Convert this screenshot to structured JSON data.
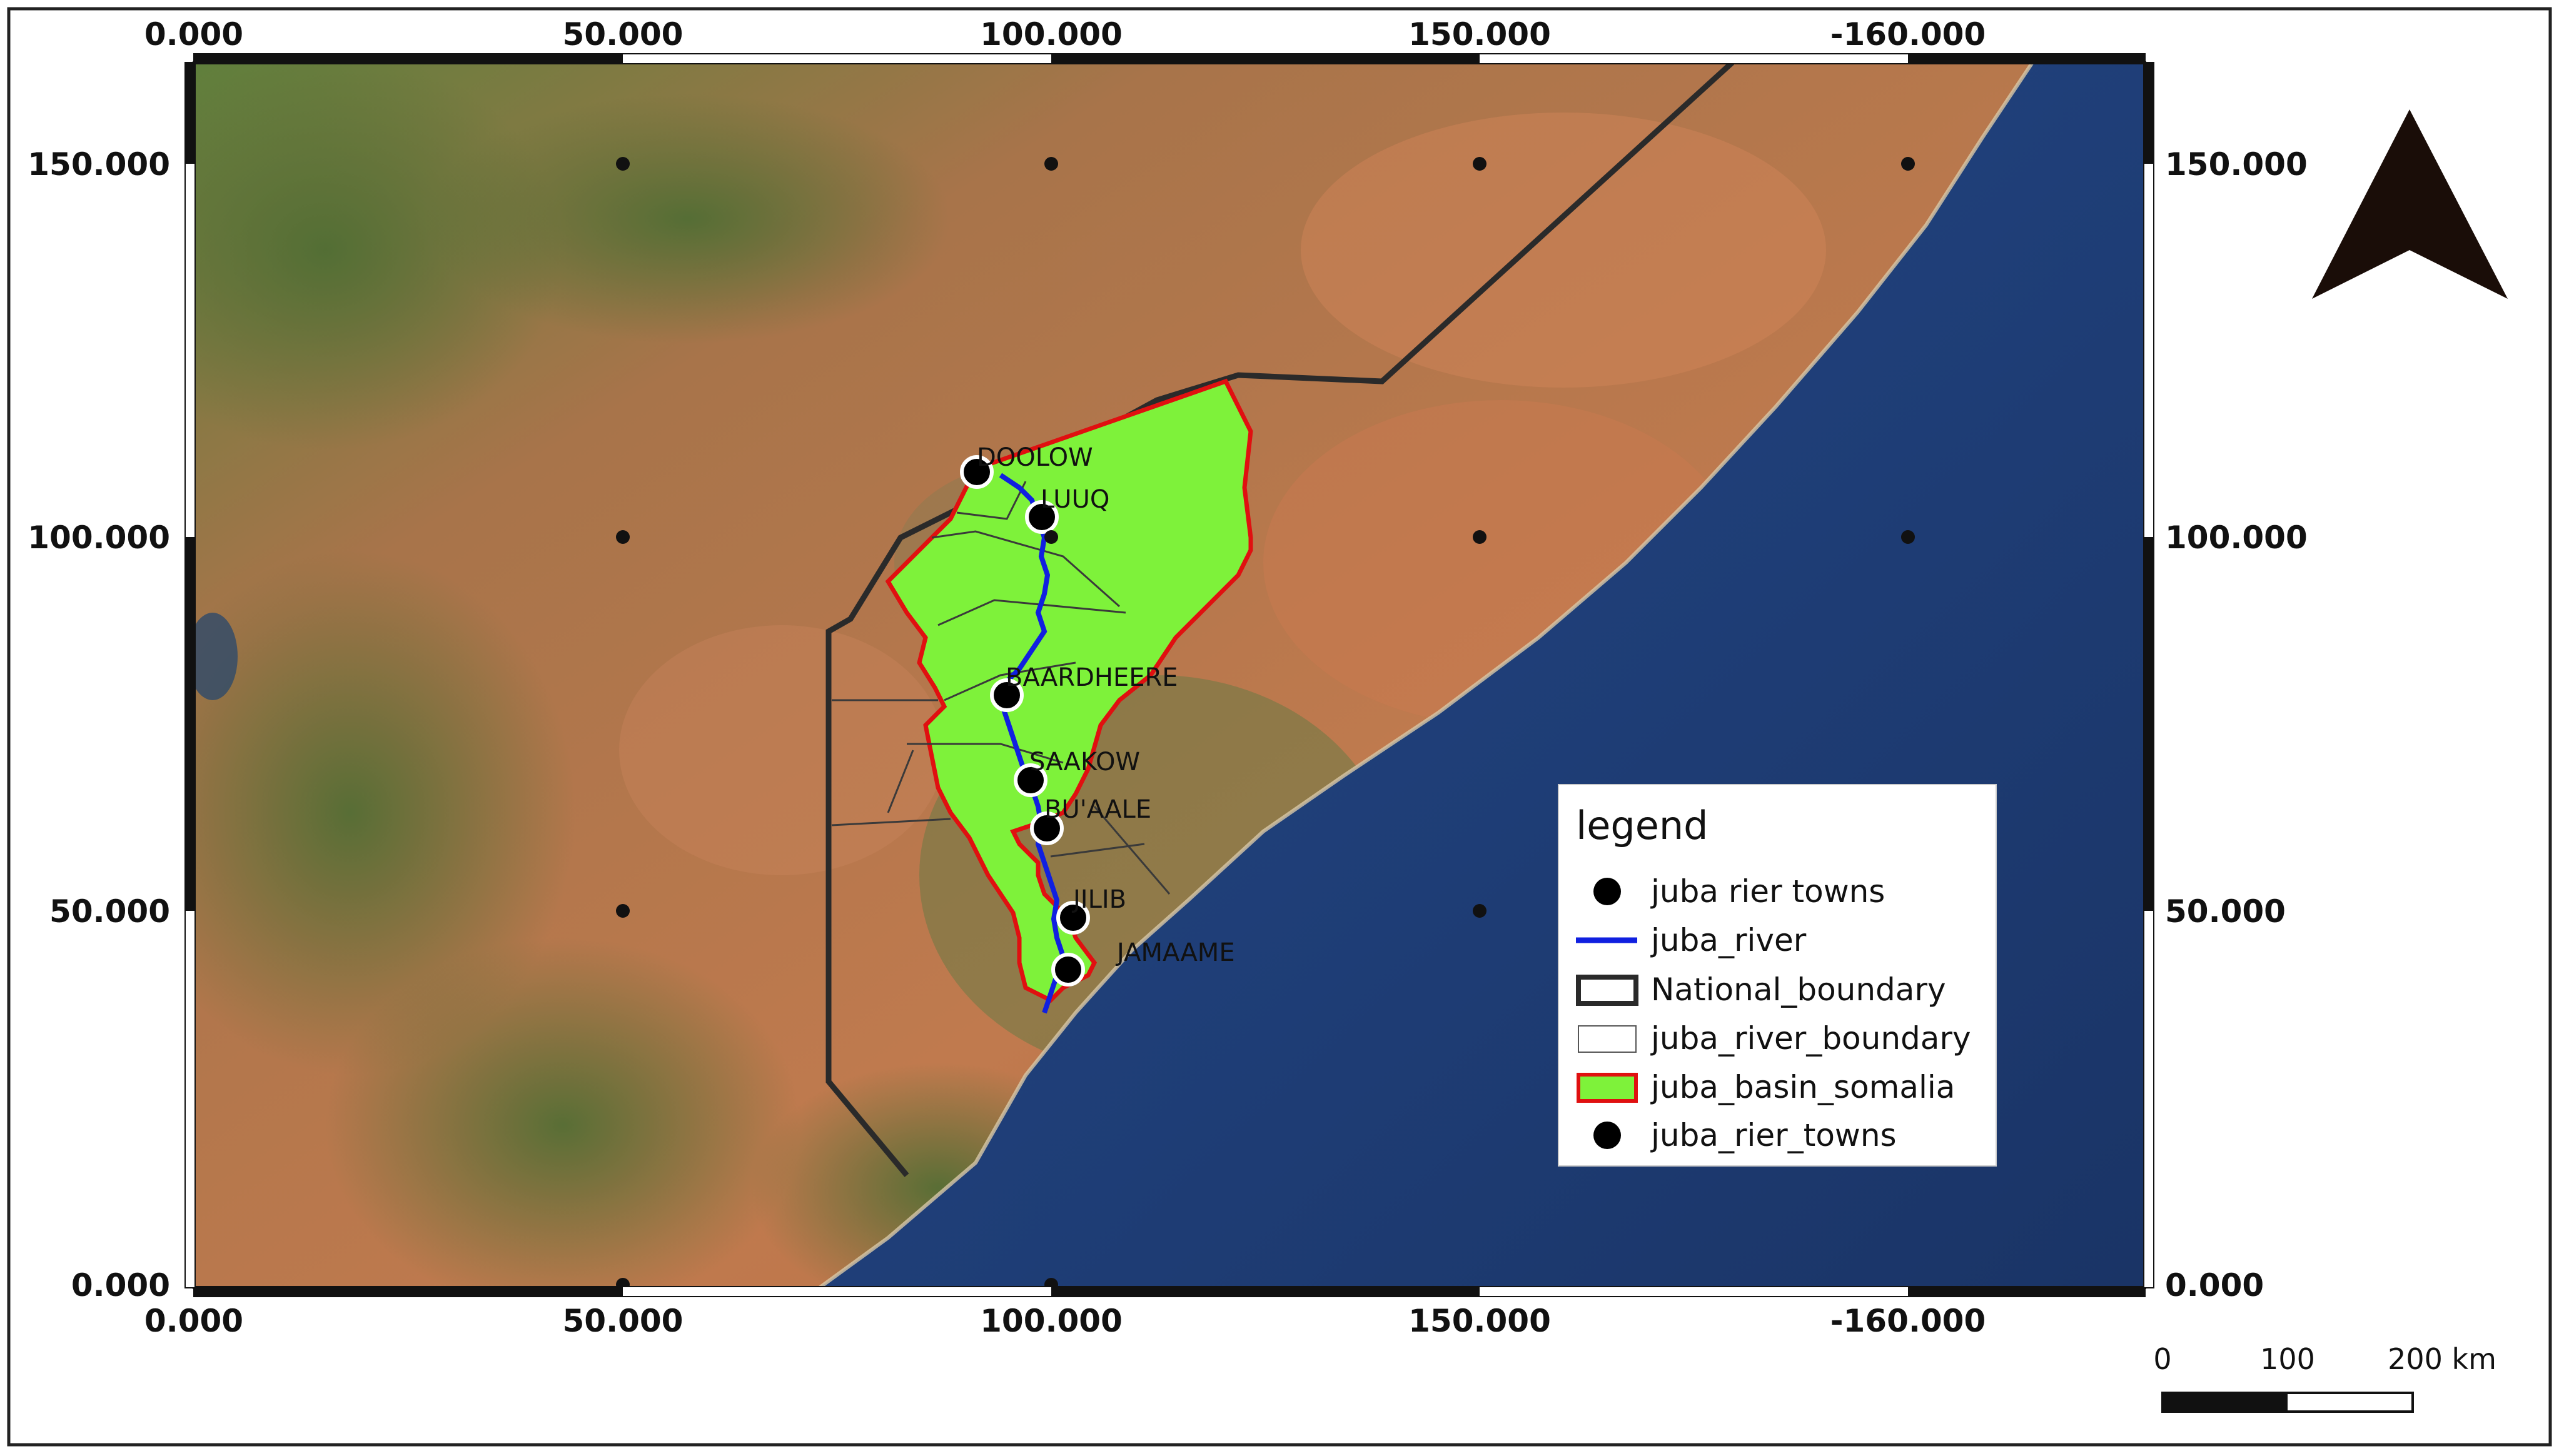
{
  "map": {
    "x_ticks_top": [
      "0.000",
      "50.000",
      "100.000",
      "150.000",
      "-160.000"
    ],
    "x_ticks_bottom": [
      "0.000",
      "50.000",
      "100.000",
      "150.000",
      "-160.000"
    ],
    "y_ticks_left": [
      "150.000",
      "100.000",
      "50.000",
      "0.000"
    ],
    "y_ticks_right": [
      "150.000",
      "100.000",
      "50.000",
      "0.000"
    ],
    "towns": [
      "DOOLOW",
      "LUUQ",
      "BAARDHEERE",
      "SAAKOW",
      "BU'AALE",
      "JILIB",
      "JAMAAME"
    ],
    "colors": {
      "basin_fill": "#7ef23a",
      "basin_outline": "#e01010",
      "river": "#1020e0",
      "national_boundary": "#2a2a2a",
      "sea": "#1f3f7a",
      "land": "#b8704a"
    }
  },
  "legend": {
    "title": "legend",
    "items": [
      {
        "label": "juba rier towns",
        "symbol": "dot"
      },
      {
        "label": "juba_river",
        "symbol": "line"
      },
      {
        "label": "National_boundary",
        "symbol": "thick-box"
      },
      {
        "label": "juba_river_boundary",
        "symbol": "thin-box"
      },
      {
        "label": "juba_basin_somalia",
        "symbol": "filled-box"
      },
      {
        "label": "juba_rier_towns",
        "symbol": "dot"
      }
    ]
  },
  "scale_bar": {
    "labels": [
      "0",
      "100",
      "200 km"
    ]
  },
  "north_arrow": {
    "icon": "north-arrow-icon"
  }
}
